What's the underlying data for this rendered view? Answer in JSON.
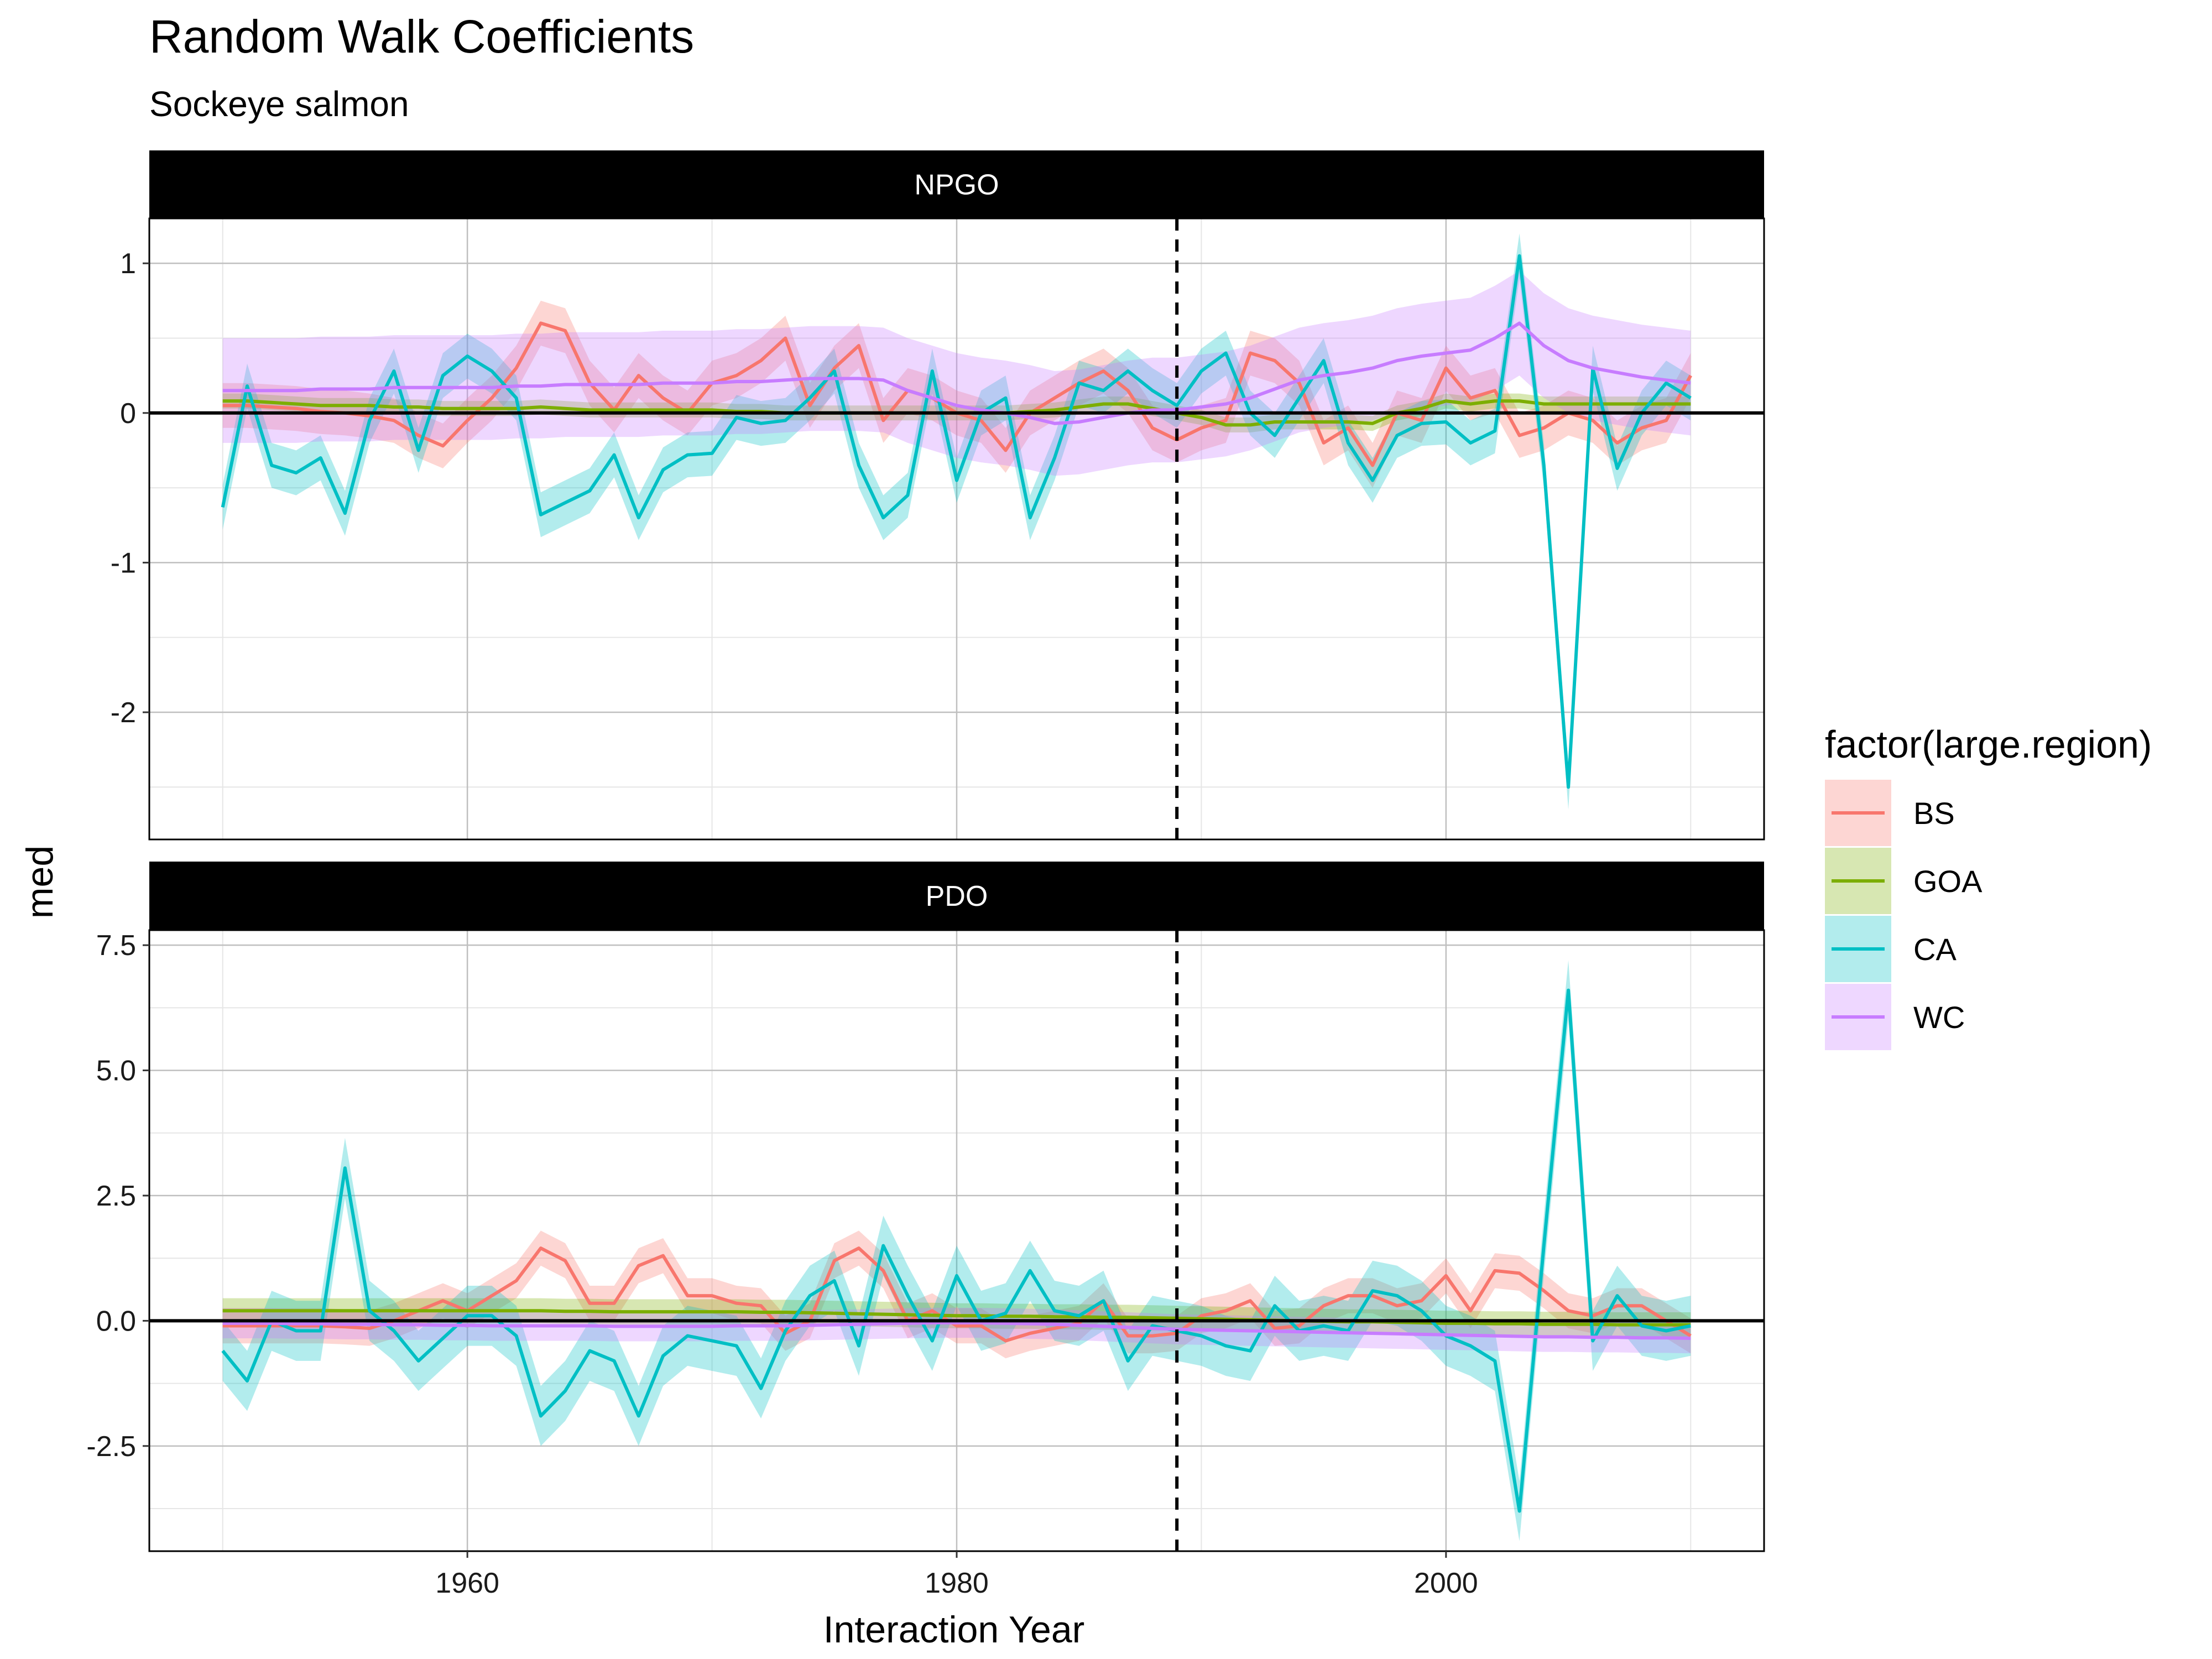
{
  "title": "Random Walk Coefficients",
  "subtitle": "Sockeye salmon",
  "colors": {
    "BS": "#F8766D",
    "GOA": "#7CAE00",
    "CA": "#00BFC4",
    "WC": "#C77CFF"
  },
  "chart_data": {
    "type": "line",
    "xlabel": "Interaction Year",
    "ylabel": "med",
    "legend_title": "factor(large.region)",
    "legend_position": "right",
    "legend_entries": [
      "BS",
      "GOA",
      "CA",
      "WC"
    ],
    "xlim": [
      1947,
      2013
    ],
    "x_ticks": [
      1960,
      1980,
      2000
    ],
    "x_tick_labels": [
      "1960",
      "1980",
      "2000"
    ],
    "vline_x": 1989,
    "grid": true,
    "x": [
      1950,
      1951,
      1952,
      1953,
      1954,
      1955,
      1956,
      1957,
      1958,
      1959,
      1960,
      1961,
      1962,
      1963,
      1964,
      1965,
      1966,
      1967,
      1968,
      1969,
      1970,
      1971,
      1972,
      1973,
      1974,
      1975,
      1976,
      1977,
      1978,
      1979,
      1980,
      1981,
      1982,
      1983,
      1984,
      1985,
      1986,
      1987,
      1988,
      1989,
      1990,
      1991,
      1992,
      1993,
      1994,
      1995,
      1996,
      1997,
      1998,
      1999,
      2000,
      2001,
      2002,
      2003,
      2004,
      2005,
      2006,
      2007,
      2008,
      2009,
      2010
    ],
    "panels": [
      {
        "strip": "NPGO",
        "ylim": [
          -2.85,
          1.3
        ],
        "y_ticks": [
          -2,
          -1,
          0,
          1
        ],
        "y_tick_labels": [
          "-2",
          "-1",
          "0",
          "1"
        ],
        "series": [
          {
            "name": "BS",
            "band": 0.15,
            "values": [
              0.05,
              0.05,
              0.04,
              0.03,
              0.01,
              0.0,
              -0.02,
              -0.05,
              -0.15,
              -0.22,
              -0.05,
              0.1,
              0.3,
              0.6,
              0.55,
              0.2,
              0.02,
              0.25,
              0.1,
              0.0,
              0.2,
              0.25,
              0.35,
              0.5,
              0.05,
              0.3,
              0.45,
              -0.05,
              0.15,
              0.1,
              0.0,
              -0.05,
              -0.25,
              0.0,
              0.1,
              0.2,
              0.28,
              0.15,
              -0.1,
              -0.18,
              -0.1,
              -0.05,
              0.4,
              0.35,
              0.2,
              -0.2,
              -0.1,
              -0.35,
              0.0,
              -0.05,
              0.3,
              0.1,
              0.15,
              -0.15,
              -0.1,
              0.0,
              -0.05,
              -0.2,
              -0.1,
              -0.05,
              0.25
            ]
          },
          {
            "name": "GOA",
            "band": 0.05,
            "values": [
              0.08,
              0.08,
              0.07,
              0.06,
              0.05,
              0.05,
              0.05,
              0.04,
              0.04,
              0.03,
              0.03,
              0.03,
              0.03,
              0.04,
              0.03,
              0.02,
              0.02,
              0.02,
              0.02,
              0.02,
              0.02,
              0.01,
              0.01,
              0.0,
              0.0,
              0.0,
              0.0,
              0.0,
              0.0,
              0.0,
              0.0,
              0.0,
              0.0,
              0.01,
              0.02,
              0.04,
              0.06,
              0.06,
              0.03,
              0.0,
              -0.03,
              -0.08,
              -0.08,
              -0.06,
              -0.06,
              -0.06,
              -0.06,
              -0.07,
              0.0,
              0.03,
              0.08,
              0.06,
              0.08,
              0.08,
              0.06,
              0.06,
              0.06,
              0.06,
              0.06,
              0.06,
              0.06
            ]
          },
          {
            "name": "CA",
            "band": 0.15,
            "values": [
              -0.63,
              0.18,
              -0.35,
              -0.4,
              -0.3,
              -0.67,
              -0.05,
              0.28,
              -0.25,
              0.25,
              0.38,
              0.28,
              0.1,
              -0.68,
              -0.6,
              -0.52,
              -0.28,
              -0.7,
              -0.38,
              -0.28,
              -0.27,
              -0.03,
              -0.07,
              -0.05,
              0.1,
              0.28,
              -0.35,
              -0.7,
              -0.55,
              0.28,
              -0.45,
              0.0,
              0.1,
              -0.7,
              -0.3,
              0.2,
              0.15,
              0.28,
              0.15,
              0.05,
              0.28,
              0.4,
              0.0,
              -0.15,
              0.1,
              0.35,
              -0.2,
              -0.45,
              -0.15,
              -0.07,
              -0.06,
              -0.2,
              -0.12,
              1.05,
              -0.35,
              -2.5,
              0.3,
              -0.37,
              0.0,
              0.2,
              0.1
            ]
          },
          {
            "name": "WC",
            "band": 0.35,
            "values": [
              0.15,
              0.15,
              0.15,
              0.15,
              0.16,
              0.16,
              0.16,
              0.17,
              0.17,
              0.17,
              0.17,
              0.17,
              0.18,
              0.18,
              0.19,
              0.19,
              0.19,
              0.19,
              0.2,
              0.2,
              0.2,
              0.21,
              0.21,
              0.22,
              0.23,
              0.23,
              0.23,
              0.22,
              0.15,
              0.1,
              0.05,
              0.02,
              0.0,
              -0.03,
              -0.07,
              -0.06,
              -0.03,
              0.0,
              0.02,
              0.02,
              0.04,
              0.06,
              0.1,
              0.16,
              0.22,
              0.25,
              0.27,
              0.3,
              0.35,
              0.38,
              0.4,
              0.42,
              0.5,
              0.6,
              0.45,
              0.35,
              0.3,
              0.27,
              0.24,
              0.22,
              0.2
            ]
          }
        ]
      },
      {
        "strip": "PDO",
        "ylim": [
          -4.6,
          7.8
        ],
        "y_ticks": [
          -2.5,
          0.0,
          2.5,
          5.0,
          7.5
        ],
        "y_tick_labels": [
          "-2.5",
          "0.0",
          "2.5",
          "5.0",
          "7.5"
        ],
        "series": [
          {
            "name": "BS",
            "band": 0.35,
            "values": [
              -0.1,
              -0.1,
              -0.1,
              -0.1,
              -0.1,
              -0.12,
              -0.15,
              0.0,
              0.2,
              0.4,
              0.2,
              0.5,
              0.8,
              1.45,
              1.2,
              0.35,
              0.35,
              1.1,
              1.3,
              0.5,
              0.5,
              0.35,
              0.3,
              -0.25,
              0.0,
              1.2,
              1.45,
              1.0,
              0.0,
              0.2,
              -0.1,
              -0.1,
              -0.4,
              -0.25,
              -0.15,
              -0.05,
              0.4,
              -0.3,
              -0.3,
              -0.25,
              0.1,
              0.2,
              0.4,
              -0.15,
              -0.1,
              0.3,
              0.5,
              0.5,
              0.3,
              0.4,
              0.9,
              0.2,
              1.0,
              0.95,
              0.6,
              0.2,
              0.1,
              0.3,
              0.3,
              0.0,
              -0.3
            ]
          },
          {
            "name": "GOA",
            "band": 0.25,
            "values": [
              0.2,
              0.2,
              0.2,
              0.2,
              0.2,
              0.2,
              0.2,
              0.2,
              0.2,
              0.2,
              0.2,
              0.2,
              0.2,
              0.2,
              0.19,
              0.19,
              0.18,
              0.18,
              0.18,
              0.18,
              0.18,
              0.18,
              0.17,
              0.17,
              0.16,
              0.15,
              0.14,
              0.13,
              0.12,
              0.11,
              0.1,
              0.1,
              0.09,
              0.09,
              0.08,
              0.08,
              0.07,
              0.07,
              0.06,
              0.05,
              0.04,
              0.03,
              0.02,
              0.01,
              0.0,
              -0.01,
              -0.02,
              -0.02,
              -0.03,
              -0.04,
              -0.05,
              -0.05,
              -0.06,
              -0.06,
              -0.07,
              -0.07,
              -0.07,
              -0.08,
              -0.08,
              -0.08,
              -0.08
            ]
          },
          {
            "name": "CA",
            "band": 0.6,
            "values": [
              -0.6,
              -1.2,
              0.0,
              -0.2,
              -0.2,
              3.05,
              0.2,
              -0.2,
              -0.8,
              -0.35,
              0.1,
              0.1,
              -0.3,
              -1.9,
              -1.4,
              -0.6,
              -0.8,
              -1.9,
              -0.7,
              -0.3,
              -0.4,
              -0.5,
              -1.35,
              -0.2,
              0.5,
              0.8,
              -0.5,
              1.5,
              0.5,
              -0.4,
              0.9,
              0.0,
              0.15,
              1.0,
              0.2,
              0.1,
              0.4,
              -0.8,
              -0.1,
              -0.2,
              -0.3,
              -0.5,
              -0.6,
              0.3,
              -0.2,
              -0.1,
              -0.2,
              0.6,
              0.5,
              0.2,
              -0.3,
              -0.5,
              -0.8,
              -3.8,
              1.5,
              6.6,
              -0.4,
              0.5,
              -0.1,
              -0.2,
              -0.1
            ]
          },
          {
            "name": "WC",
            "band": 0.3,
            "values": [
              -0.05,
              -0.05,
              -0.05,
              -0.06,
              -0.06,
              -0.07,
              -0.07,
              -0.08,
              -0.08,
              -0.09,
              -0.09,
              -0.1,
              -0.1,
              -0.1,
              -0.1,
              -0.1,
              -0.11,
              -0.11,
              -0.11,
              -0.11,
              -0.11,
              -0.1,
              -0.1,
              -0.1,
              -0.09,
              -0.08,
              -0.07,
              -0.06,
              -0.05,
              -0.04,
              -0.04,
              -0.04,
              -0.05,
              -0.06,
              -0.07,
              -0.09,
              -0.11,
              -0.13,
              -0.15,
              -0.17,
              -0.18,
              -0.19,
              -0.2,
              -0.21,
              -0.22,
              -0.23,
              -0.24,
              -0.25,
              -0.26,
              -0.27,
              -0.28,
              -0.29,
              -0.3,
              -0.31,
              -0.32,
              -0.32,
              -0.33,
              -0.33,
              -0.34,
              -0.34,
              -0.35
            ]
          }
        ]
      }
    ]
  }
}
